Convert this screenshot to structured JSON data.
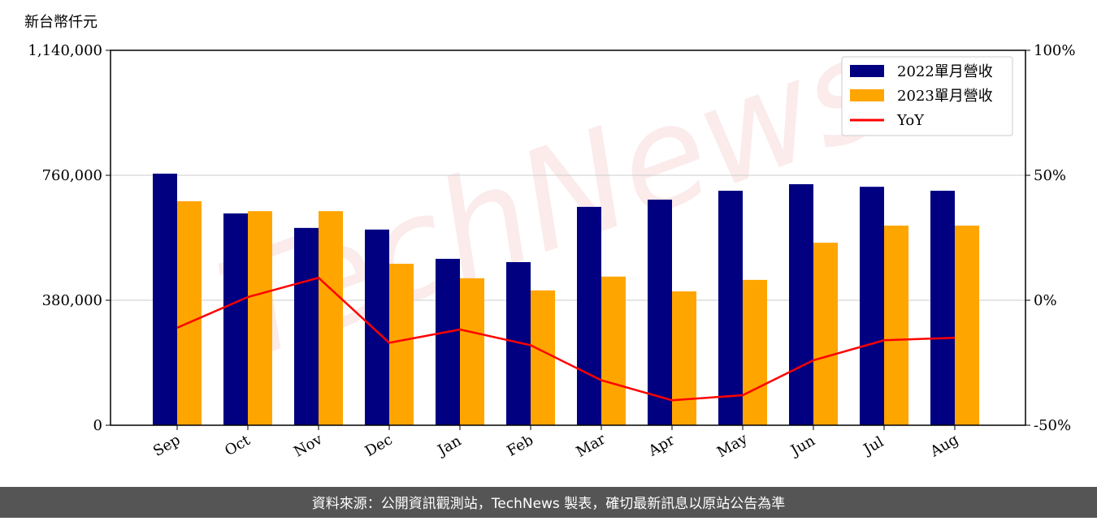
{
  "chart_data": {
    "type": "bar_line",
    "y_label": "新台幣仟元",
    "categories": [
      "Sep",
      "Oct",
      "Nov",
      "Dec",
      "Jan",
      "Feb",
      "Mar",
      "Apr",
      "May",
      "Jun",
      "Jul",
      "Aug"
    ],
    "series": [
      {
        "name": "2022單月營收",
        "type": "bar",
        "color": "#000080",
        "values": [
          765000,
          644000,
          600000,
          595000,
          506000,
          496000,
          664000,
          686000,
          713000,
          733000,
          725000,
          713000
        ]
      },
      {
        "name": "2023單月營收",
        "type": "bar",
        "color": "#ffa500",
        "values": [
          681000,
          651000,
          651000,
          491000,
          447000,
          410000,
          452000,
          407000,
          442000,
          555000,
          607000,
          607000
        ]
      },
      {
        "name": "YoY",
        "type": "line",
        "axis": "y2",
        "color": "#ff0000",
        "values": [
          -11,
          1.3,
          9,
          -17,
          -11.7,
          -18,
          -32,
          -40,
          -38,
          -24,
          -16,
          -15
        ]
      }
    ],
    "ylim": [
      0,
      1140000
    ],
    "yticks": [
      0,
      {
        "value": 380000,
        "label": "380,000"
      },
      {
        "value": 760000,
        "label": "760,000"
      },
      {
        "value": 1140000,
        "label": "1,140,000"
      }
    ],
    "y2lim": [
      -50,
      100
    ],
    "y2ticks": [
      {
        "value": -50,
        "label": "-50%"
      },
      {
        "value": 0,
        "label": "0%"
      },
      {
        "value": 50,
        "label": "50%"
      },
      {
        "value": 100,
        "label": "100%"
      }
    ],
    "grid": true,
    "legend": "upper right",
    "watermark": "TechNews",
    "footer": "資料來源：公開資訊觀測站，TechNews 製表，確切最新訊息以原站公告為準"
  }
}
